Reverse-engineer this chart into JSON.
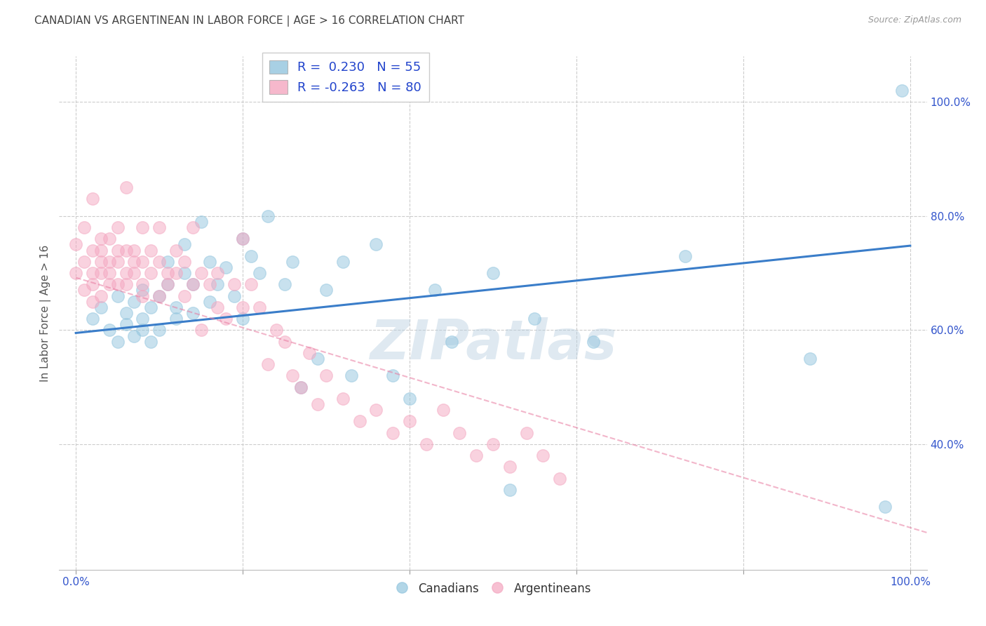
{
  "title": "CANADIAN VS ARGENTINEAN IN LABOR FORCE | AGE > 16 CORRELATION CHART",
  "source": "Source: ZipAtlas.com",
  "ylabel": "In Labor Force | Age > 16",
  "xlim": [
    -0.02,
    1.02
  ],
  "ylim": [
    0.18,
    1.08
  ],
  "xticks": [
    0.0,
    0.2,
    0.4,
    0.6,
    0.8,
    1.0
  ],
  "yticks": [
    0.4,
    0.6,
    0.8,
    1.0
  ],
  "xticklabels_bottom": [
    "0.0%",
    "",
    "",
    "",
    "",
    "100.0%"
  ],
  "yticklabels_right": [
    "40.0%",
    "60.0%",
    "80.0%",
    "100.0%"
  ],
  "legend_r_canadian": " 0.230",
  "legend_n_canadian": "55",
  "legend_r_argentinean": "-0.263",
  "legend_n_argentinean": "80",
  "canadian_color": "#92c5de",
  "argentinean_color": "#f4a6c0",
  "canadian_line_color": "#3a7dc9",
  "argentinean_line_color": "#e87aa0",
  "watermark_text": "ZIPatlas",
  "background_color": "#ffffff",
  "grid_color": "#cccccc",
  "title_color": "#444444",
  "axis_label_color": "#555555",
  "tick_color": "#3355cc",
  "canadian_scatter_x": [
    0.02,
    0.03,
    0.04,
    0.05,
    0.05,
    0.06,
    0.06,
    0.07,
    0.07,
    0.08,
    0.08,
    0.08,
    0.09,
    0.09,
    0.1,
    0.1,
    0.11,
    0.11,
    0.12,
    0.12,
    0.13,
    0.13,
    0.14,
    0.14,
    0.15,
    0.16,
    0.16,
    0.17,
    0.18,
    0.19,
    0.2,
    0.2,
    0.21,
    0.22,
    0.23,
    0.25,
    0.26,
    0.27,
    0.29,
    0.3,
    0.32,
    0.33,
    0.36,
    0.38,
    0.4,
    0.43,
    0.45,
    0.5,
    0.52,
    0.55,
    0.62,
    0.73,
    0.88,
    0.97,
    0.99
  ],
  "canadian_scatter_y": [
    0.62,
    0.64,
    0.6,
    0.66,
    0.58,
    0.63,
    0.61,
    0.65,
    0.59,
    0.67,
    0.62,
    0.6,
    0.64,
    0.58,
    0.66,
    0.6,
    0.72,
    0.68,
    0.64,
    0.62,
    0.75,
    0.7,
    0.68,
    0.63,
    0.79,
    0.72,
    0.65,
    0.68,
    0.71,
    0.66,
    0.76,
    0.62,
    0.73,
    0.7,
    0.8,
    0.68,
    0.72,
    0.5,
    0.55,
    0.67,
    0.72,
    0.52,
    0.75,
    0.52,
    0.48,
    0.67,
    0.58,
    0.7,
    0.32,
    0.62,
    0.58,
    0.73,
    0.55,
    0.29,
    1.02
  ],
  "argentinean_scatter_x": [
    0.0,
    0.0,
    0.01,
    0.01,
    0.01,
    0.02,
    0.02,
    0.02,
    0.02,
    0.02,
    0.03,
    0.03,
    0.03,
    0.03,
    0.03,
    0.04,
    0.04,
    0.04,
    0.04,
    0.05,
    0.05,
    0.05,
    0.05,
    0.06,
    0.06,
    0.06,
    0.06,
    0.07,
    0.07,
    0.07,
    0.08,
    0.08,
    0.08,
    0.08,
    0.09,
    0.09,
    0.1,
    0.1,
    0.1,
    0.11,
    0.11,
    0.12,
    0.12,
    0.13,
    0.13,
    0.14,
    0.14,
    0.15,
    0.15,
    0.16,
    0.17,
    0.17,
    0.18,
    0.19,
    0.2,
    0.2,
    0.21,
    0.22,
    0.23,
    0.24,
    0.25,
    0.26,
    0.27,
    0.28,
    0.29,
    0.3,
    0.32,
    0.34,
    0.36,
    0.38,
    0.4,
    0.42,
    0.44,
    0.46,
    0.48,
    0.5,
    0.52,
    0.54,
    0.56,
    0.58
  ],
  "argentinean_scatter_y": [
    0.7,
    0.75,
    0.72,
    0.67,
    0.78,
    0.65,
    0.7,
    0.74,
    0.68,
    0.83,
    0.66,
    0.72,
    0.76,
    0.7,
    0.74,
    0.68,
    0.72,
    0.76,
    0.7,
    0.74,
    0.68,
    0.72,
    0.78,
    0.7,
    0.74,
    0.68,
    0.85,
    0.72,
    0.7,
    0.74,
    0.68,
    0.72,
    0.78,
    0.66,
    0.7,
    0.74,
    0.72,
    0.66,
    0.78,
    0.7,
    0.68,
    0.7,
    0.74,
    0.66,
    0.72,
    0.68,
    0.78,
    0.7,
    0.6,
    0.68,
    0.64,
    0.7,
    0.62,
    0.68,
    0.64,
    0.76,
    0.68,
    0.64,
    0.54,
    0.6,
    0.58,
    0.52,
    0.5,
    0.56,
    0.47,
    0.52,
    0.48,
    0.44,
    0.46,
    0.42,
    0.44,
    0.4,
    0.46,
    0.42,
    0.38,
    0.4,
    0.36,
    0.42,
    0.38,
    0.34
  ],
  "canadian_trend_x": [
    0.0,
    1.0
  ],
  "canadian_trend_y": [
    0.595,
    0.748
  ],
  "argentinean_trend_x": [
    0.0,
    1.02
  ],
  "argentinean_trend_y": [
    0.692,
    0.245
  ]
}
